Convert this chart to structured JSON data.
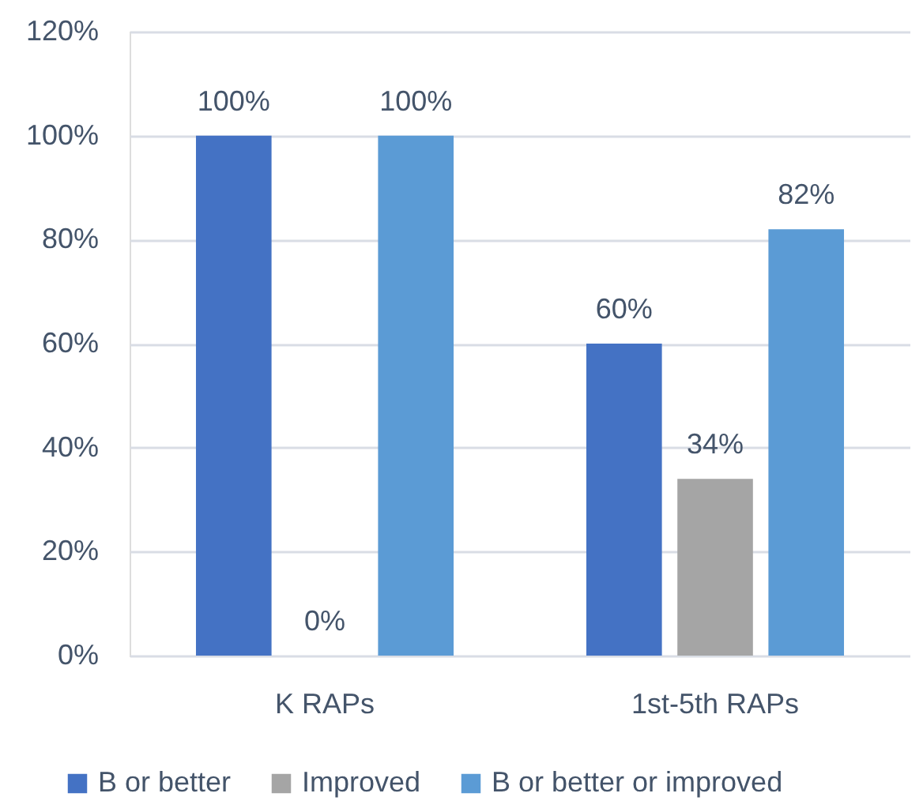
{
  "chart_data": {
    "type": "bar",
    "categories": [
      "K RAPs",
      "1st-5th RAPs"
    ],
    "series": [
      {
        "name": "B or better",
        "color": "#4472c4",
        "values": [
          100,
          60
        ],
        "value_labels": [
          "100%",
          "60%"
        ]
      },
      {
        "name": "Improved",
        "color": "#a5a5a5",
        "values": [
          0,
          34
        ],
        "value_labels": [
          "0%",
          "34%"
        ]
      },
      {
        "name": "B or better or improved",
        "color": "#5b9bd5",
        "values": [
          100,
          82
        ],
        "value_labels": [
          "100%",
          "82%"
        ]
      }
    ],
    "ylim": [
      0,
      120
    ],
    "yticks": [
      {
        "value": 0,
        "label": "0%"
      },
      {
        "value": 20,
        "label": "20%"
      },
      {
        "value": 40,
        "label": "40%"
      },
      {
        "value": 60,
        "label": "60%"
      },
      {
        "value": 80,
        "label": "80%"
      },
      {
        "value": 100,
        "label": "100%"
      },
      {
        "value": 120,
        "label": "120%"
      }
    ],
    "grid": "y",
    "legend": "bottom"
  }
}
